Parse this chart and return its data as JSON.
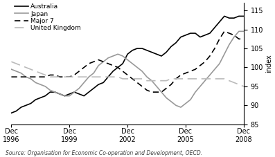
{
  "ylabel_right": "index",
  "source_text": "Source: Organisation for Economic Co-operation and Development, OECD.",
  "ylim": [
    85,
    117
  ],
  "yticks": [
    85,
    90,
    95,
    100,
    105,
    110,
    115
  ],
  "x_tick_labels": [
    "Dec\n1996",
    "Dec\n1999",
    "Dec\n2002",
    "Dec\n2005",
    "Dec\n2008"
  ],
  "x_tick_positions": [
    0,
    3,
    6,
    9,
    12
  ],
  "legend_entries": [
    "Australia",
    "Japan",
    "Major 7",
    "United Kingdom"
  ],
  "australia_x": [
    0,
    0.25,
    0.5,
    0.75,
    1.0,
    1.25,
    1.5,
    1.75,
    2.0,
    2.25,
    2.5,
    2.75,
    3.0,
    3.25,
    3.5,
    3.75,
    4.0,
    4.25,
    4.5,
    4.75,
    5.0,
    5.25,
    5.5,
    5.75,
    6.0,
    6.25,
    6.5,
    6.75,
    7.0,
    7.25,
    7.5,
    7.75,
    8.0,
    8.25,
    8.5,
    8.75,
    9.0,
    9.25,
    9.5,
    9.75,
    10.0,
    10.25,
    10.5,
    10.75,
    11.0,
    11.25,
    11.5,
    11.75,
    12.0
  ],
  "australia": [
    88.0,
    88.5,
    89.5,
    90.0,
    90.5,
    91.5,
    92.0,
    92.5,
    93.5,
    93.5,
    93.0,
    92.5,
    93.0,
    93.5,
    93.0,
    92.5,
    93.5,
    94.5,
    95.5,
    96.0,
    97.5,
    99.0,
    100.0,
    101.0,
    103.5,
    104.5,
    105.0,
    105.0,
    104.5,
    104.0,
    103.5,
    103.0,
    104.0,
    105.5,
    106.5,
    108.0,
    108.5,
    109.0,
    109.0,
    108.0,
    108.5,
    109.0,
    110.5,
    112.0,
    113.5,
    113.0,
    113.0,
    113.5,
    113.5
  ],
  "japan": [
    99.5,
    99.0,
    98.5,
    97.5,
    97.0,
    96.0,
    95.5,
    95.0,
    94.0,
    93.5,
    93.0,
    92.5,
    92.5,
    93.5,
    94.5,
    96.0,
    97.5,
    98.5,
    100.5,
    101.5,
    102.5,
    103.0,
    103.5,
    103.0,
    102.0,
    101.0,
    100.0,
    99.0,
    97.5,
    96.5,
    95.0,
    93.5,
    92.0,
    91.0,
    90.0,
    89.5,
    90.5,
    91.5,
    93.5,
    95.0,
    96.5,
    98.0,
    99.5,
    101.0,
    103.5,
    106.0,
    108.0,
    109.5,
    109.5
  ],
  "major7": [
    97.5,
    97.5,
    97.5,
    97.5,
    97.5,
    97.5,
    97.5,
    97.5,
    98.0,
    98.0,
    97.5,
    97.5,
    97.5,
    98.0,
    99.0,
    100.0,
    101.0,
    101.5,
    102.0,
    101.5,
    101.0,
    100.5,
    100.0,
    99.0,
    98.0,
    97.0,
    96.0,
    95.0,
    94.0,
    93.5,
    93.5,
    93.5,
    94.5,
    95.5,
    97.0,
    98.0,
    98.5,
    99.0,
    99.5,
    100.5,
    101.5,
    103.0,
    105.0,
    107.5,
    109.5,
    109.0,
    108.5,
    107.5,
    107.5
  ],
  "uk": [
    101.5,
    101.0,
    100.5,
    100.0,
    99.5,
    99.0,
    98.5,
    98.0,
    97.5,
    97.5,
    97.5,
    97.5,
    97.5,
    97.5,
    97.5,
    97.5,
    97.5,
    97.5,
    97.5,
    97.5,
    97.5,
    97.5,
    97.5,
    97.0,
    97.0,
    97.0,
    97.0,
    97.0,
    96.5,
    96.5,
    96.5,
    96.5,
    96.5,
    97.0,
    97.0,
    97.0,
    97.0,
    97.0,
    97.0,
    97.0,
    97.0,
    97.0,
    97.0,
    97.0,
    97.0,
    96.5,
    96.0,
    95.5,
    95.0
  ],
  "colors": {
    "australia": "#000000",
    "japan": "#999999",
    "major7": "#000000",
    "uk": "#bbbbbb"
  },
  "linestyles": {
    "australia": "-",
    "japan": "-",
    "major7": "--",
    "uk": "--"
  },
  "linewidths": {
    "australia": 1.2,
    "japan": 1.2,
    "major7": 1.2,
    "uk": 1.2
  }
}
